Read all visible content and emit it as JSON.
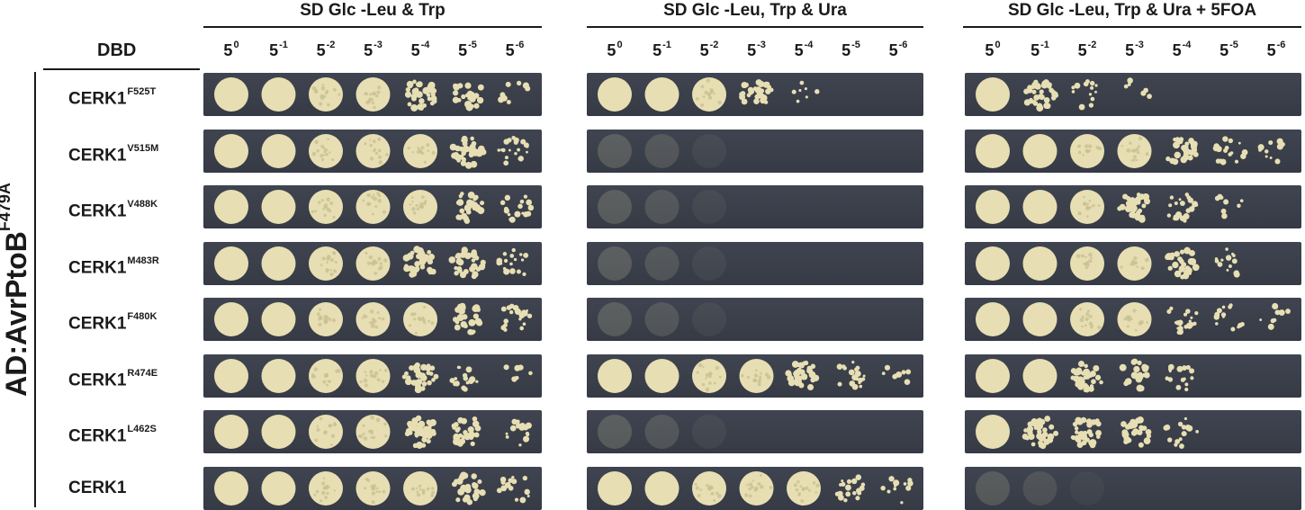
{
  "panels": [
    {
      "title": "SD Glc -Leu & Trp"
    },
    {
      "title": "SD Glc -Leu, Trp & Ura"
    },
    {
      "title": "SD Glc -Leu, Trp & Ura + 5FOA"
    }
  ],
  "dbd_label": "DBD",
  "ad_label": {
    "text": "AD:AvrPtoB",
    "superscript": "F479A"
  },
  "dilutions": [
    {
      "base": "5",
      "exp": "0"
    },
    {
      "base": "5",
      "exp": "-1"
    },
    {
      "base": "5",
      "exp": "-2"
    },
    {
      "base": "5",
      "exp": "-3"
    },
    {
      "base": "5",
      "exp": "-4"
    },
    {
      "base": "5",
      "exp": "-5"
    },
    {
      "base": "5",
      "exp": "-6"
    }
  ],
  "rows": [
    {
      "name": "CERK1",
      "mutation": "F525T"
    },
    {
      "name": "CERK1",
      "mutation": "V515M"
    },
    {
      "name": "CERK1",
      "mutation": "V488K"
    },
    {
      "name": "CERK1",
      "mutation": "M483R"
    },
    {
      "name": "CERK1",
      "mutation": "F480K"
    },
    {
      "name": "CERK1",
      "mutation": "R474E"
    },
    {
      "name": "CERK1",
      "mutation": "L462S"
    },
    {
      "name": "CERK1",
      "mutation": ""
    }
  ],
  "growth_levels": [
    [
      [
        1,
        1,
        1,
        1,
        0.85,
        0.6,
        0.12
      ],
      [
        1,
        1,
        0.95,
        0.7,
        0.08,
        0,
        0
      ],
      [
        1,
        0.85,
        0.3,
        0.1,
        0,
        0,
        0
      ]
    ],
    [
      [
        1,
        1,
        1,
        1,
        1,
        0.8,
        0.5
      ],
      [
        0.35,
        0.28,
        0.1,
        0,
        0,
        0,
        0
      ],
      [
        1,
        1,
        1,
        1,
        0.75,
        0.45,
        0.2
      ]
    ],
    [
      [
        1,
        1,
        1,
        1,
        0.95,
        0.7,
        0.35
      ],
      [
        0.35,
        0.28,
        0.1,
        0,
        0,
        0,
        0
      ],
      [
        1,
        1,
        0.95,
        0.85,
        0.5,
        0.15,
        0
      ]
    ],
    [
      [
        1,
        1,
        1,
        1,
        0.9,
        0.75,
        0.4
      ],
      [
        0.35,
        0.28,
        0.1,
        0,
        0,
        0,
        0
      ],
      [
        1,
        1,
        1,
        0.95,
        0.65,
        0.3,
        0
      ]
    ],
    [
      [
        1,
        1,
        1,
        1,
        0.95,
        0.6,
        0.45
      ],
      [
        0.35,
        0.28,
        0.1,
        0,
        0,
        0,
        0
      ],
      [
        1,
        1,
        1,
        0.95,
        0.5,
        0.25,
        0.12
      ]
    ],
    [
      [
        1,
        1,
        1,
        0.95,
        0.8,
        0.4,
        0.05
      ],
      [
        1,
        1,
        1,
        1,
        0.85,
        0.45,
        0.12
      ],
      [
        1,
        1,
        0.85,
        0.55,
        0.35,
        0,
        0
      ]
    ],
    [
      [
        1,
        1,
        1,
        1,
        0.9,
        0.7,
        0.3
      ],
      [
        0.35,
        0.28,
        0.1,
        0,
        0,
        0,
        0
      ],
      [
        1,
        0.9,
        0.85,
        0.65,
        0.3,
        0,
        0
      ]
    ],
    [
      [
        1,
        1,
        1,
        1,
        0.95,
        0.6,
        0.3
      ],
      [
        1,
        1,
        1,
        1,
        0.95,
        0.5,
        0.2
      ],
      [
        0.3,
        0.22,
        0.08,
        0,
        0,
        0,
        0
      ]
    ]
  ],
  "colors": {
    "colony": "#e7dfb3",
    "plate": "#3c414c",
    "text": "#1a1a1a"
  }
}
